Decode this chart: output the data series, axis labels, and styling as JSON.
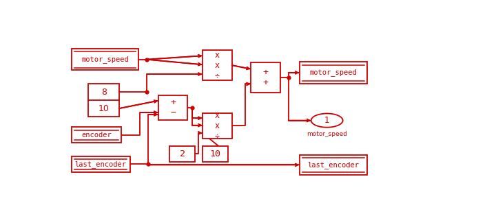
{
  "bg_color": "#ffffff",
  "lc": "#cc0000",
  "lw": 1.3,
  "blocks": {
    "ms_in": [
      0.028,
      0.73,
      0.178,
      0.13
    ],
    "c8_10": [
      0.073,
      0.448,
      0.082,
      0.2
    ],
    "enc": [
      0.028,
      0.29,
      0.132,
      0.095
    ],
    "lenc": [
      0.028,
      0.112,
      0.155,
      0.095
    ],
    "mult1": [
      0.375,
      0.67,
      0.078,
      0.18
    ],
    "addsub": [
      0.258,
      0.428,
      0.078,
      0.15
    ],
    "mult2": [
      0.375,
      0.315,
      0.078,
      0.155
    ],
    "c2": [
      0.288,
      0.175,
      0.068,
      0.095
    ],
    "c10b": [
      0.375,
      0.175,
      0.068,
      0.095
    ],
    "addadd": [
      0.503,
      0.595,
      0.078,
      0.182
    ],
    "ms_out": [
      0.632,
      0.65,
      0.18,
      0.13
    ],
    "lenc_out": [
      0.632,
      0.095,
      0.18,
      0.12
    ]
  },
  "circle": [
    0.705,
    0.425,
    0.042
  ],
  "labels": {
    "ms_in": "motor_speed",
    "enc": "encoder",
    "lenc": "last_encoder",
    "mult1": "x\nx\n÷",
    "addsub": "+\n−",
    "mult2": "x\nx\n÷",
    "c2": "2",
    "c10b": "10",
    "addadd": "+\n+",
    "ms_out": "motor_speed",
    "lenc_out": "last_encoder",
    "c8": "8",
    "c10": "10",
    "circle_num": "1",
    "circle_sub": "motor_speed"
  }
}
